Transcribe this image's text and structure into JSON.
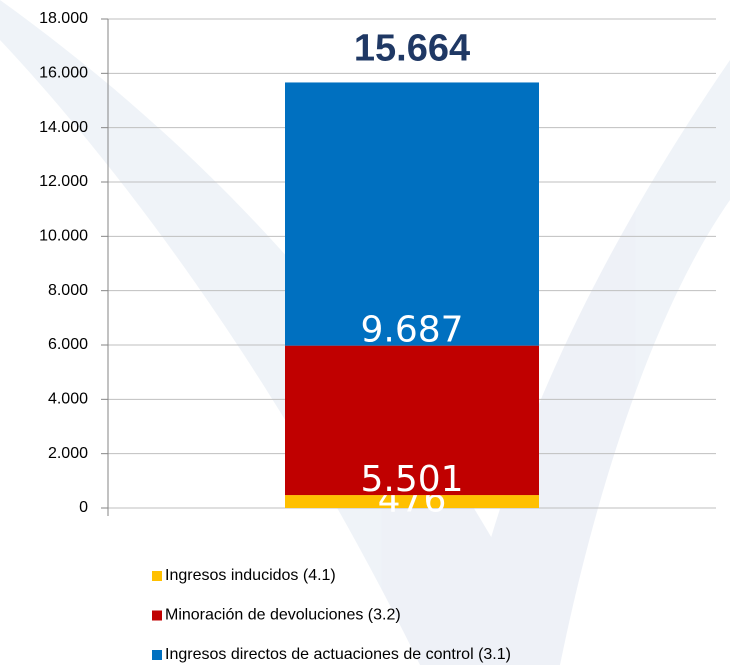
{
  "chart_data": {
    "type": "stacked_bar",
    "categories": [
      null
    ],
    "series": [
      {
        "name": "Ingresos inducidos (4.1)",
        "color": "#ffc000",
        "values": [
          476
        ],
        "value_labels": [
          "476"
        ]
      },
      {
        "name": "Minoración de devoluciones (3.2)",
        "color": "#c00000",
        "values": [
          5501
        ],
        "value_labels": [
          "5.501"
        ]
      },
      {
        "name": "Ingresos directos de actuaciones de control (3.1)",
        "color": "#0070c0",
        "values": [
          9687
        ],
        "value_labels": [
          "9.687"
        ]
      }
    ],
    "annotations": [
      "15.664"
    ],
    "ylim": [
      0,
      18000
    ],
    "yticks": [
      0,
      {
        "value": 2000,
        "label": "2.000"
      },
      {
        "value": 4000,
        "label": "4.000"
      },
      {
        "value": 6000,
        "label": "6.000"
      },
      {
        "value": 8000,
        "label": "8.000"
      },
      {
        "value": 10000,
        "label": "10.000"
      },
      {
        "value": 12000,
        "label": "12.000"
      },
      {
        "value": 14000,
        "label": "14.000"
      },
      {
        "value": 16000,
        "label": "16.000"
      },
      {
        "value": 18000,
        "label": "18.000"
      }
    ],
    "grid": true
  }
}
